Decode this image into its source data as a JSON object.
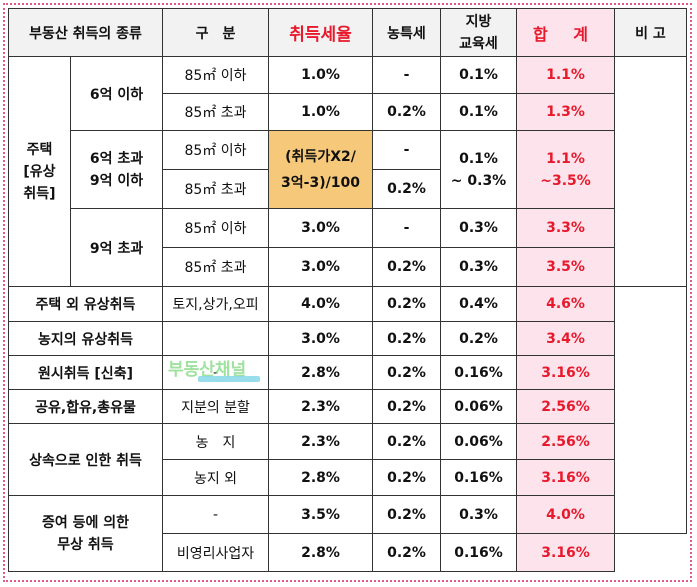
{
  "header": {
    "type": "부동산 취득의 종류",
    "division": "구　분",
    "acq_rate": "취득세율",
    "rural_tax": "농특세",
    "edu_tax_line1": "지방",
    "edu_tax_line2": "교육세",
    "total": "합 계",
    "note": "비 고"
  },
  "housing": {
    "label_line1": "주택",
    "label_line2": "[유상",
    "label_line3": "취득]",
    "g1": {
      "label": "6억 이하",
      "r1": {
        "area": "85㎡ 이하",
        "rate": "1.0%",
        "rural": "-",
        "edu": "0.1%",
        "total": "1.1%"
      },
      "r2": {
        "area": "85㎡ 초과",
        "rate": "1.0%",
        "rural": "0.2%",
        "edu": "0.1%",
        "total": "1.3%"
      }
    },
    "g2": {
      "label_line1": "6억 초과",
      "label_line2": "9억 이하",
      "r1": {
        "area": "85㎡ 이하",
        "rural": "-"
      },
      "r2": {
        "area": "85㎡ 초과",
        "rural": "0.2%"
      },
      "formula_line1": "(취득가X2/",
      "formula_line2": "3억-3)/100",
      "edu_line1": "0.1%",
      "edu_line2": "~ 0.3%",
      "total_line1": "1.1%",
      "total_line2": "~3.5%"
    },
    "g3": {
      "label": "9억 초과",
      "r1": {
        "area": "85㎡ 이하",
        "rate": "3.0%",
        "rural": "-",
        "edu": "0.3%",
        "total": "3.3%"
      },
      "r2": {
        "area": "85㎡ 초과",
        "rate": "3.0%",
        "rural": "0.2%",
        "edu": "0.3%",
        "total": "3.5%"
      }
    }
  },
  "rows": {
    "non_housing": {
      "type": "주택 외 유상취득",
      "division": "토지,상가,오피",
      "rate": "4.0%",
      "rural": "0.2%",
      "edu": "0.4%",
      "total": "4.6%"
    },
    "farmland": {
      "type": "농지의 유상취득",
      "division": "",
      "rate": "3.0%",
      "rural": "0.2%",
      "edu": "0.2%",
      "total": "3.4%"
    },
    "original": {
      "type": "원시취득 [신축]",
      "division": "-",
      "rate": "2.8%",
      "rural": "0.2%",
      "edu": "0.16%",
      "total": "3.16%"
    },
    "joint": {
      "type": "공유,합유,총유물",
      "division": "지분의 분할",
      "rate": "2.3%",
      "rural": "0.2%",
      "edu": "0.06%",
      "total": "2.56%"
    }
  },
  "inherit": {
    "type": "상속으로 인한 취득",
    "r1": {
      "division": "농　지",
      "rate": "2.3%",
      "rural": "0.2%",
      "edu": "0.06%",
      "total": "2.56%"
    },
    "r2": {
      "division": "농지 외",
      "rate": "2.8%",
      "rural": "0.2%",
      "edu": "0.16%",
      "total": "3.16%"
    }
  },
  "gift": {
    "type_line1": "증여 등에 의한",
    "type_line2": "무상 취득",
    "r1": {
      "division": "-",
      "rate": "3.5%",
      "rural": "0.2%",
      "edu": "0.3%",
      "total": "4.0%"
    },
    "r2": {
      "division": "비영리사업자",
      "rate": "2.8%",
      "rural": "0.2%",
      "edu": "0.16%",
      "total": "3.16%"
    }
  },
  "watermark": {
    "text": "부동산채널"
  },
  "colors": {
    "accent_red": "#e8192c",
    "total_bg": "#fde4ec",
    "formula_bg": "#f6c879",
    "border_dots": "#e05a8a"
  }
}
